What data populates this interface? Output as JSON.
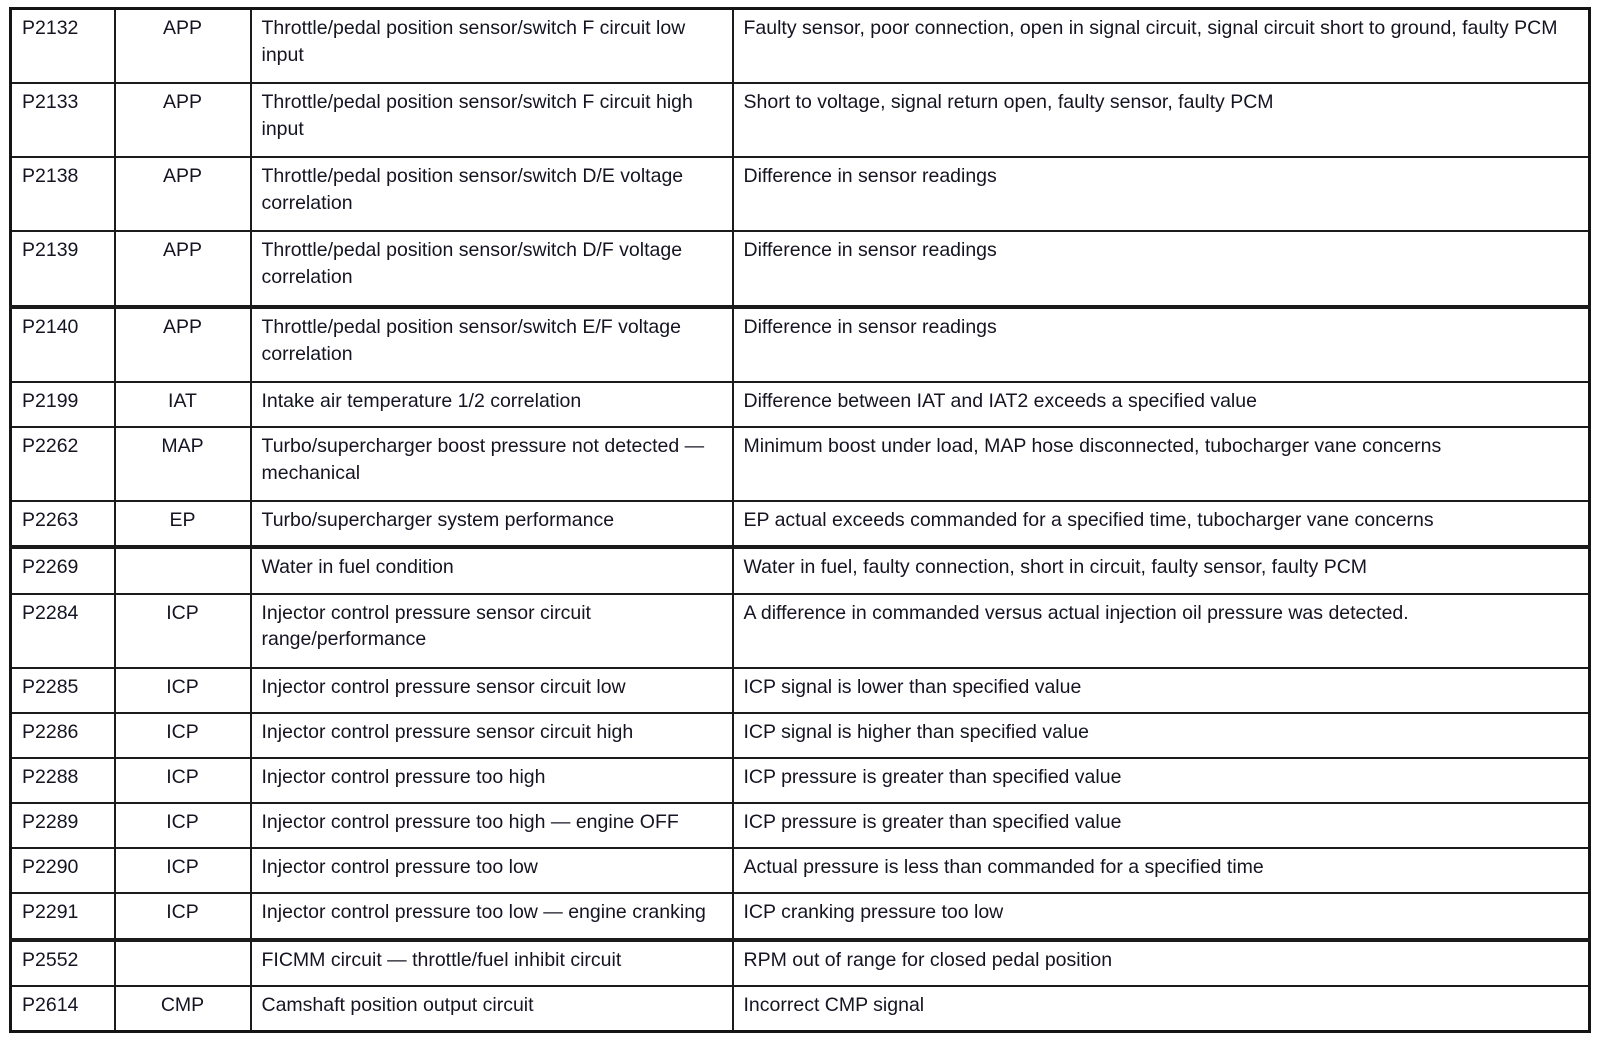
{
  "page": {
    "background_color": "#ffffff",
    "text_color": "#141422",
    "border_color": "#1b1b1b"
  },
  "table": {
    "columns": [
      "code",
      "system",
      "description",
      "cause"
    ],
    "rows": [
      {
        "code": "P2132",
        "system": "APP",
        "description": "Throttle/pedal position sensor/switch F circuit low input",
        "cause": "Faulty sensor, poor connection, open in signal circuit, signal circuit short to ground, faulty PCM"
      },
      {
        "code": "P2133",
        "system": "APP",
        "description": "Throttle/pedal position sensor/switch F circuit high input",
        "cause": "Short to voltage, signal return open, faulty sensor, faulty PCM"
      },
      {
        "code": "P2138",
        "system": "APP",
        "description": "Throttle/pedal position sensor/switch D/E voltage correlation",
        "cause": "Difference in sensor readings"
      },
      {
        "code": "P2139",
        "system": "APP",
        "description": "Throttle/pedal position sensor/switch D/F voltage correlation",
        "cause": "Difference in sensor readings"
      },
      {
        "code": "P2140",
        "system": "APP",
        "description": "Throttle/pedal position sensor/switch E/F voltage correlation",
        "cause": "Difference in sensor readings",
        "thick_top": true
      },
      {
        "code": "P2199",
        "system": "IAT",
        "description": "Intake air temperature 1/2 correlation",
        "cause": "Difference between IAT and IAT2 exceeds a specified value"
      },
      {
        "code": "P2262",
        "system": "MAP",
        "description": "Turbo/supercharger boost pressure not detected — mechanical",
        "cause": "Minimum boost under load, MAP hose disconnected, tubocharger vane concerns"
      },
      {
        "code": "P2263",
        "system": "EP",
        "description": "Turbo/supercharger system performance",
        "cause": "EP actual exceeds commanded for a specified time, tubocharger vane concerns"
      },
      {
        "code": "P2269",
        "system": "",
        "description": "Water in fuel condition",
        "cause": "Water in fuel, faulty connection, short in circuit, faulty sensor, faulty PCM",
        "thick_top": true
      },
      {
        "code": "P2284",
        "system": "ICP",
        "description": "Injector control pressure sensor circuit range/performance",
        "cause": "A difference in commanded versus actual injection oil pressure was detected."
      },
      {
        "code": "P2285",
        "system": "ICP",
        "description": "Injector control pressure sensor circuit low",
        "cause": "ICP signal is lower than specified value"
      },
      {
        "code": "P2286",
        "system": "ICP",
        "description": "Injector control pressure sensor circuit high",
        "cause": "ICP signal is higher than specified value"
      },
      {
        "code": "P2288",
        "system": "ICP",
        "description": "Injector control pressure too high",
        "cause": "ICP pressure is greater than specified value"
      },
      {
        "code": "P2289",
        "system": "ICP",
        "description": "Injector control pressure too high — engine OFF",
        "cause": "ICP pressure is greater than specified value"
      },
      {
        "code": "P2290",
        "system": "ICP",
        "description": "Injector control pressure too low",
        "cause": "Actual pressure is less than commanded for a specified time"
      },
      {
        "code": "P2291",
        "system": "ICP",
        "description": "Injector control pressure too low — engine cranking",
        "cause": "ICP cranking pressure too low"
      },
      {
        "code": "P2552",
        "system": "",
        "description": "FICMM circuit — throttle/fuel inhibit circuit",
        "cause": "RPM out of range for closed pedal position",
        "thick_top": true
      },
      {
        "code": "P2614",
        "system": "CMP",
        "description": "Camshaft position output circuit",
        "cause": "Incorrect CMP signal"
      }
    ]
  }
}
